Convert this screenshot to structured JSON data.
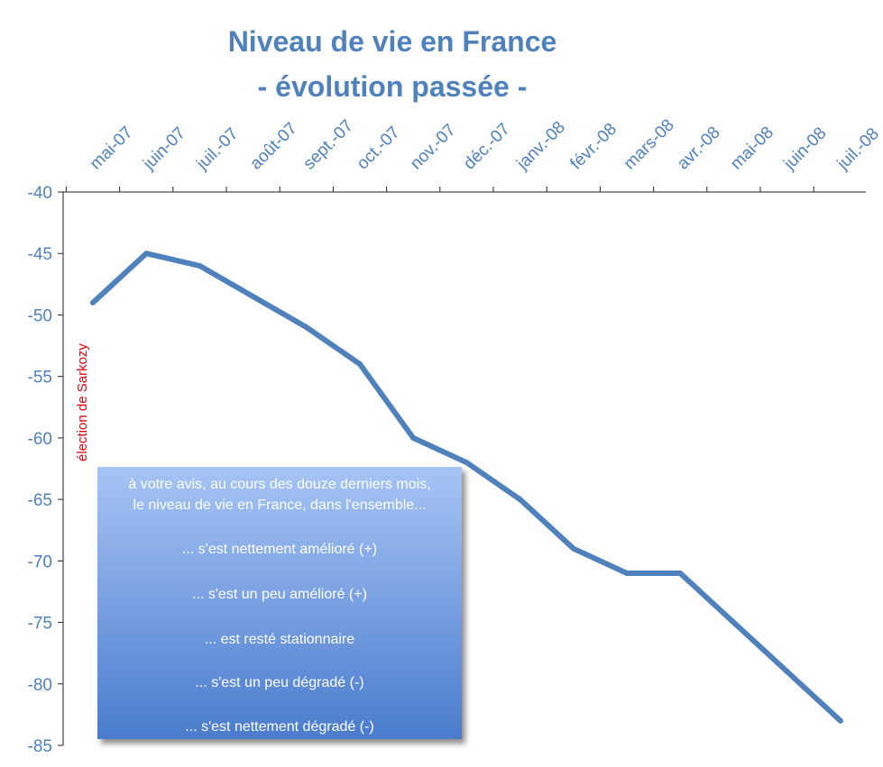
{
  "title_line1": "Niveau de vie en France",
  "title_line2": "- évolution passée -",
  "chart_data": {
    "type": "line",
    "title": "Niveau de vie en France - évolution passée -",
    "categories": [
      "mai-07",
      "juin-07",
      "juil.-07",
      "août-07",
      "sept.-07",
      "oct.-07",
      "nov.-07",
      "déc.-07",
      "janv.-08",
      "févr.-08",
      "mars-08",
      "avr.-08",
      "mai-08",
      "juin-08",
      "juil.-08"
    ],
    "series": [
      {
        "values": [
          -49,
          -45,
          -46,
          -48.5,
          -51,
          -54,
          -60,
          -62,
          -65,
          -69,
          -71,
          -71,
          -75,
          -79,
          -83
        ]
      }
    ],
    "ylim": [
      -85,
      -40
    ],
    "yticks": [
      -40,
      -45,
      -50,
      -55,
      -60,
      -65,
      -70,
      -75,
      -80,
      -85
    ],
    "ytick_labels": [
      "-40",
      "-45",
      "-50",
      "-55",
      "-60",
      "-65",
      "-70",
      "-75",
      "-80",
      "-85"
    ],
    "x_axis_position": "top",
    "grid": false,
    "line_color": "#4f81bd",
    "annotation": {
      "text": "élection de Sarkozy",
      "category": "mai-07",
      "color": "#e4000f"
    }
  },
  "legend_box": {
    "question_line1": "à votre avis, au cours des douze derniers mois,",
    "question_line2": "le niveau de vie en France, dans l'ensemble...",
    "options": [
      "... s'est nettement amélioré (+)",
      "... s'est un peu amélioré (+)",
      "... est resté stationnaire",
      "... s'est un peu dégradé (-)",
      "... s'est nettement dégradé (-)"
    ]
  }
}
